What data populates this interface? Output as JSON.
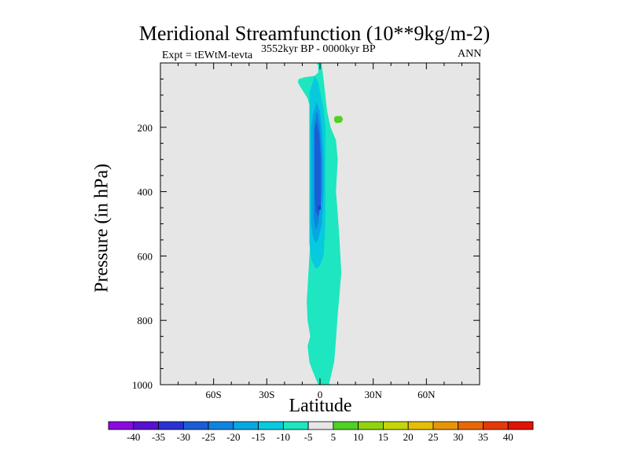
{
  "chart_data": {
    "type": "contour",
    "title": "Meridional Streamfunction (10**9kg/m-2)",
    "left_label": "Expt = tEWtM-tevta",
    "center_label": "3552kyr BP - 0000kyr BP",
    "right_label": "ANN",
    "xlabel": "Latitude",
    "ylabel": "Pressure (in hPa)",
    "xlim": [
      -90,
      90
    ],
    "ylim": [
      1000,
      0
    ],
    "x_ticks": [
      {
        "value": -60,
        "label": "60S"
      },
      {
        "value": -30,
        "label": "30S"
      },
      {
        "value": 0,
        "label": "0"
      },
      {
        "value": 30,
        "label": "30N"
      },
      {
        "value": 60,
        "label": "60N"
      }
    ],
    "y_ticks": [
      {
        "value": 200,
        "label": "200"
      },
      {
        "value": 400,
        "label": "400"
      },
      {
        "value": 600,
        "label": "600"
      },
      {
        "value": 800,
        "label": "800"
      },
      {
        "value": 1000,
        "label": "1000"
      }
    ],
    "background_color": "#e6e6e6",
    "colorbar": {
      "levels": [
        "-40",
        "-35",
        "-30",
        "-25",
        "-20",
        "-15",
        "-10",
        "-5",
        "5",
        "10",
        "15",
        "20",
        "25",
        "30",
        "35",
        "40"
      ],
      "colors": [
        "#8a0be0",
        "#5a10d0",
        "#2a32d2",
        "#1a5ed6",
        "#0f84de",
        "#06a8e2",
        "#08cade",
        "#1ee6c0",
        "#e6e6e6",
        "#4ed224",
        "#8fd40e",
        "#c4d60a",
        "#e6be08",
        "#e69606",
        "#e86806",
        "#e63a06",
        "#e01404"
      ]
    },
    "regions": [
      {
        "name": "contour-neg-5",
        "color": "#1ee6c0",
        "points": [
          [
            -2,
            2
          ],
          [
            -1,
            8
          ],
          [
            -1,
            30
          ],
          [
            -3,
            40
          ],
          [
            -9,
            45
          ],
          [
            -12,
            50
          ],
          [
            -12.5,
            60
          ],
          [
            -11,
            75
          ],
          [
            -7,
            110
          ],
          [
            -5,
            150
          ],
          [
            -4,
            220
          ],
          [
            -4,
            300
          ],
          [
            -4,
            400
          ],
          [
            -4,
            460
          ],
          [
            -5,
            520
          ],
          [
            -6,
            600
          ],
          [
            -7,
            700
          ],
          [
            -7.5,
            740
          ],
          [
            -7,
            800
          ],
          [
            -5.5,
            850
          ],
          [
            -7,
            880
          ],
          [
            -6,
            930
          ],
          [
            -4,
            960
          ],
          [
            -1,
            1000
          ],
          [
            5,
            1000
          ],
          [
            8,
            930
          ],
          [
            9,
            860
          ],
          [
            10,
            780
          ],
          [
            11,
            720
          ],
          [
            12,
            650
          ],
          [
            11,
            550
          ],
          [
            10,
            470
          ],
          [
            9,
            400
          ],
          [
            9.5,
            350
          ],
          [
            10,
            300
          ],
          [
            9,
            240
          ],
          [
            6,
            200
          ],
          [
            4,
            150
          ],
          [
            3,
            100
          ],
          [
            2,
            50
          ],
          [
            1,
            8
          ],
          [
            1,
            2
          ]
        ]
      },
      {
        "name": "contour-neg-10",
        "color": "#08cade",
        "points": [
          [
            -3,
            40
          ],
          [
            -4,
            60
          ],
          [
            -6,
            90
          ],
          [
            -6,
            130
          ],
          [
            -6,
            200
          ],
          [
            -6,
            300
          ],
          [
            -6,
            400
          ],
          [
            -6,
            500
          ],
          [
            -6,
            560
          ],
          [
            -5,
            610
          ],
          [
            -2.5,
            640
          ],
          [
            0,
            630
          ],
          [
            2,
            600
          ],
          [
            3,
            500
          ],
          [
            3,
            400
          ],
          [
            3,
            300
          ],
          [
            3,
            200
          ],
          [
            2,
            140
          ],
          [
            0,
            90
          ],
          [
            -1,
            60
          ]
        ]
      },
      {
        "name": "contour-neg-15",
        "color": "#06a8e2",
        "points": [
          [
            -2,
            120
          ],
          [
            -4,
            160
          ],
          [
            -5,
            200
          ],
          [
            -5,
            300
          ],
          [
            -5,
            400
          ],
          [
            -5,
            500
          ],
          [
            -4,
            540
          ],
          [
            -2.5,
            560
          ],
          [
            -1,
            550
          ],
          [
            1,
            500
          ],
          [
            2,
            400
          ],
          [
            2,
            300
          ],
          [
            1,
            200
          ],
          [
            0,
            150
          ]
        ]
      },
      {
        "name": "contour-neg-20",
        "color": "#0f84de",
        "points": [
          [
            -2,
            150
          ],
          [
            -3,
            180
          ],
          [
            -3.5,
            200
          ],
          [
            -3.5,
            300
          ],
          [
            -3.5,
            400
          ],
          [
            -3.5,
            480
          ],
          [
            -2.5,
            520
          ],
          [
            -1,
            500
          ],
          [
            1,
            400
          ],
          [
            1,
            300
          ],
          [
            0,
            200
          ],
          [
            -1,
            160
          ]
        ]
      },
      {
        "name": "contour-neg-25",
        "color": "#1a5ed6",
        "points": [
          [
            -2,
            180
          ],
          [
            -3,
            210
          ],
          [
            -3,
            300
          ],
          [
            -3,
            400
          ],
          [
            -2.5,
            460
          ],
          [
            -1,
            480
          ],
          [
            0.5,
            440
          ],
          [
            0.5,
            300
          ],
          [
            -0.5,
            220
          ]
        ]
      },
      {
        "name": "contour-neg-30",
        "color": "#2a32d2",
        "points": [
          [
            -1,
            444
          ],
          [
            -1,
            456
          ],
          [
            0.5,
            456
          ],
          [
            0.5,
            444
          ]
        ]
      },
      {
        "name": "contour-pos-5",
        "color": "#4ed224",
        "points": [
          [
            8,
            170
          ],
          [
            9,
            165
          ],
          [
            12,
            165
          ],
          [
            13,
            175
          ],
          [
            12,
            185
          ],
          [
            9,
            187
          ],
          [
            8,
            180
          ]
        ]
      }
    ]
  }
}
